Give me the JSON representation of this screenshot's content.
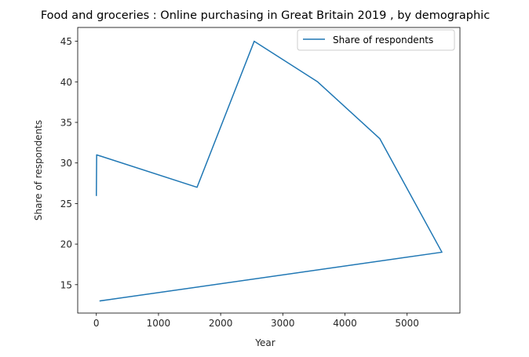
{
  "chart_data": {
    "type": "line",
    "title": "Food and groceries : Online purchasing in Great Britain 2019 , by demographic",
    "xlabel": "Year",
    "ylabel": "Share of respondents",
    "xlim": [
      -300,
      5850
    ],
    "ylim": [
      11.5,
      46.7
    ],
    "xticks": [
      0,
      1000,
      2000,
      3000,
      4000,
      5000
    ],
    "yticks": [
      15,
      20,
      25,
      30,
      35,
      40,
      45
    ],
    "grid": false,
    "legend_position": "top-right",
    "series": [
      {
        "name": "Share of respondents",
        "color": "#1f77b4",
        "x": [
          0,
          5,
          1620,
          2540,
          3560,
          4560,
          5560,
          60
        ],
        "y": [
          26,
          31,
          27,
          45,
          40,
          33,
          19,
          13
        ]
      }
    ]
  }
}
